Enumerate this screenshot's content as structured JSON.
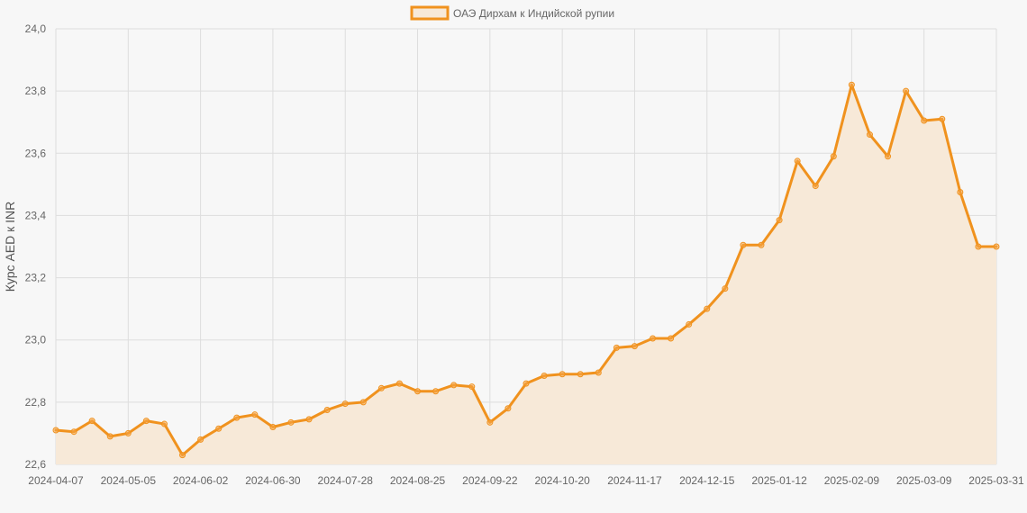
{
  "chart_data": {
    "type": "area",
    "ylabel": "Курс AED к INR",
    "ylim": [
      22.6,
      24.0
    ],
    "y_ticks": [
      "22,6",
      "22,8",
      "23,0",
      "23,2",
      "23,4",
      "23,6",
      "23,8",
      "24,0"
    ],
    "y_tick_values": [
      22.6,
      22.8,
      23.0,
      23.2,
      23.4,
      23.6,
      23.8,
      24.0
    ],
    "x_ticks": [
      "2024-04-07",
      "2024-05-05",
      "2024-06-02",
      "2024-06-30",
      "2024-07-28",
      "2024-08-25",
      "2024-09-22",
      "2024-10-20",
      "2024-11-17",
      "2024-12-15",
      "2025-01-12",
      "2025-02-09",
      "2025-03-09",
      "2025-03-31"
    ],
    "x_tick_index": [
      0,
      4,
      8,
      12,
      16,
      20,
      24,
      28,
      32,
      36,
      40,
      44,
      48,
      52
    ],
    "legend_position": "top-center",
    "grid": true,
    "colors": {
      "line": "#f0921e",
      "fill": "#f7e9d8",
      "point": "#f5a54a"
    },
    "series": [
      {
        "name": "ОАЭ Дирхам к Индийской рупии",
        "values": [
          22.71,
          22.705,
          22.74,
          22.69,
          22.7,
          22.74,
          22.73,
          22.63,
          22.68,
          22.715,
          22.75,
          22.76,
          22.72,
          22.735,
          22.745,
          22.775,
          22.795,
          22.8,
          22.845,
          22.86,
          22.835,
          22.835,
          22.855,
          22.85,
          22.735,
          22.78,
          22.86,
          22.885,
          22.89,
          22.89,
          22.895,
          22.975,
          22.98,
          23.005,
          23.005,
          23.05,
          23.1,
          23.165,
          23.305,
          23.305,
          23.385,
          23.575,
          23.495,
          23.59,
          23.82,
          23.66,
          23.59,
          23.8,
          23.705,
          23.71,
          23.475,
          23.3,
          23.3
        ]
      }
    ]
  }
}
